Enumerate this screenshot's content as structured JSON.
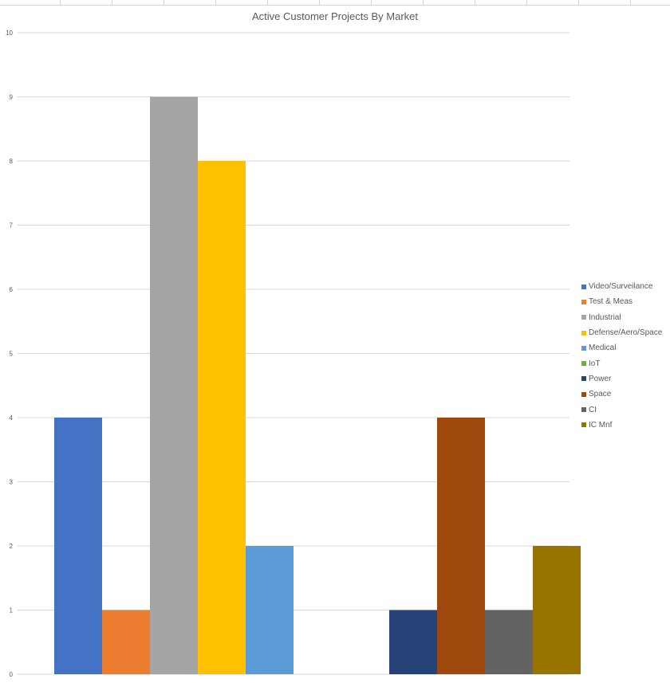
{
  "chart_data": {
    "type": "bar",
    "title": "Active Customer Projects By Market",
    "xlabel": "",
    "ylabel": "",
    "ylim": [
      0,
      10
    ],
    "yticks": [
      0,
      1,
      2,
      3,
      4,
      5,
      6,
      7,
      8,
      9,
      10
    ],
    "grid": true,
    "legend_position": "right",
    "groups": [
      {
        "series": [
          "Video/Surveilance",
          "Test & Meas",
          "Industrial",
          "Defense/Aero/Space",
          "Medical"
        ],
        "values": [
          4,
          1,
          9,
          8,
          2
        ]
      },
      {
        "series": [
          "IoT",
          "Power",
          "Space",
          "CI",
          "IC Mnf"
        ],
        "values": [
          0,
          1,
          4,
          1,
          2
        ]
      }
    ],
    "series": [
      {
        "name": "Video/Surveilance",
        "color": "#4472C4"
      },
      {
        "name": "Test & Meas",
        "color": "#ED7D31"
      },
      {
        "name": "Industrial",
        "color": "#A5A5A5"
      },
      {
        "name": "Defense/Aero/Space",
        "color": "#FFC000"
      },
      {
        "name": "Medical",
        "color": "#5B9BD5"
      },
      {
        "name": "IoT",
        "color": "#70AD47"
      },
      {
        "name": "Power",
        "color": "#264478"
      },
      {
        "name": "Space",
        "color": "#9E480E"
      },
      {
        "name": "CI",
        "color": "#636363"
      },
      {
        "name": "IC Mnf",
        "color": "#997300"
      }
    ],
    "gridline_color": "#d9d9d9",
    "text_color": "#595959"
  }
}
